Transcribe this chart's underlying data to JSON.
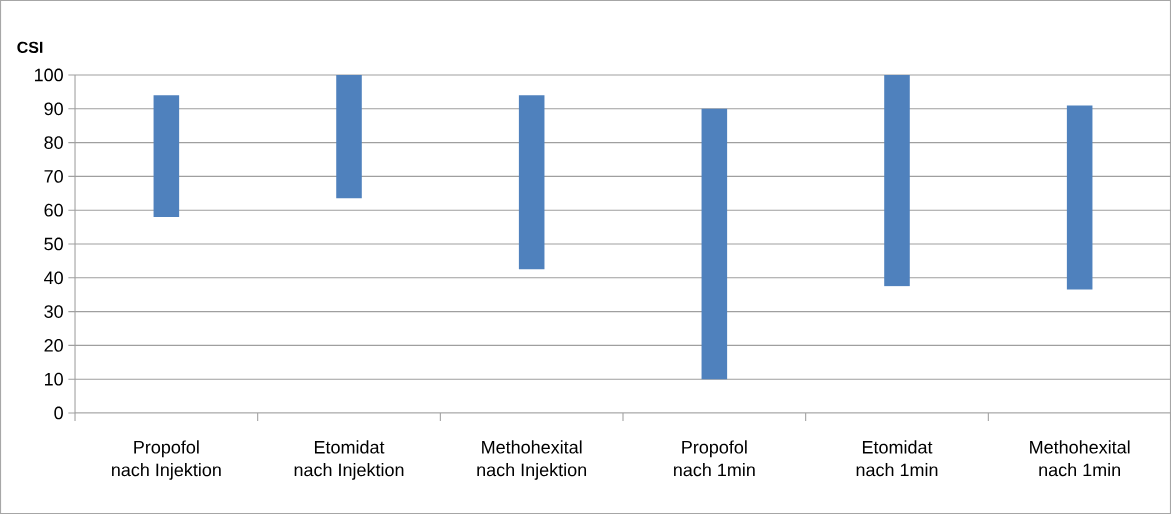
{
  "chart_data": {
    "type": "bar",
    "ylabel": "CSI",
    "categories": [
      "Propofol\nnach Injektion",
      "Etomidat\nnach Injektion",
      "Methohexital\nnach Injektion",
      "Propofol\nnach 1min",
      "Etomidat\nnach 1min",
      "Methohexital\nnach 1min"
    ],
    "base": [
      58,
      63.5,
      42.5,
      10,
      37.5,
      36.5
    ],
    "values": [
      36,
      36.5,
      51.5,
      80,
      62.5,
      54.5
    ],
    "color": "#4f81bd",
    "ylim": [
      0,
      100
    ],
    "yticks": [
      0,
      10,
      20,
      30,
      40,
      50,
      60,
      70,
      80,
      90,
      100
    ],
    "grid": "y"
  }
}
